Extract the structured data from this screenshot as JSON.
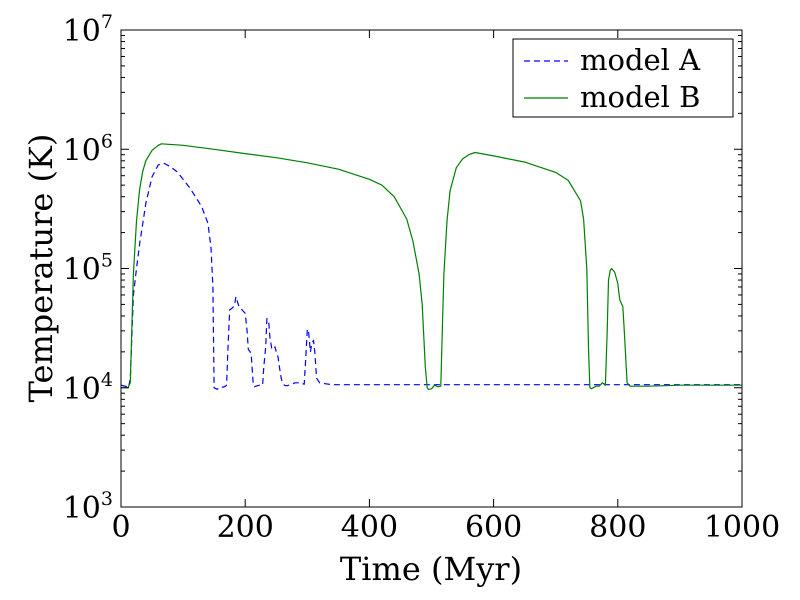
{
  "chart_data": {
    "type": "line",
    "title": "",
    "xlabel": "Time (Myr)",
    "ylabel": "Temperature (K)",
    "xlim": [
      0,
      1000
    ],
    "ylim": [
      1000,
      10000000
    ],
    "yscale": "log",
    "grid": false,
    "legend_position": "top-right",
    "x_ticks": [
      {
        "value": 0,
        "label": "0"
      },
      {
        "value": 200,
        "label": "200"
      },
      {
        "value": 400,
        "label": "400"
      },
      {
        "value": 600,
        "label": "600"
      },
      {
        "value": 800,
        "label": "800"
      },
      {
        "value": 1000,
        "label": "1000"
      }
    ],
    "y_ticks": [
      {
        "value": 1000,
        "base": "10",
        "exp": "3"
      },
      {
        "value": 10000,
        "base": "10",
        "exp": "4"
      },
      {
        "value": 100000,
        "base": "10",
        "exp": "5"
      },
      {
        "value": 1000000,
        "base": "10",
        "exp": "6"
      },
      {
        "value": 10000000,
        "base": "10",
        "exp": "7"
      }
    ],
    "series": [
      {
        "name": "model A",
        "color": "#0000ff",
        "style": "dashed",
        "x": [
          0,
          10,
          12,
          15,
          20,
          25,
          30,
          40,
          50,
          60,
          70,
          80,
          90,
          100,
          110,
          120,
          130,
          140,
          145,
          148,
          150,
          155,
          160,
          165,
          168,
          170,
          172,
          175,
          180,
          183,
          185,
          188,
          190,
          195,
          200,
          203,
          205,
          208,
          210,
          213,
          215,
          220,
          223,
          225,
          228,
          230,
          233,
          235,
          238,
          240,
          243,
          245,
          248,
          250,
          253,
          255,
          258,
          260,
          263,
          265,
          268,
          270,
          275,
          280,
          285,
          290,
          293,
          295,
          298,
          300,
          302,
          305,
          307,
          310,
          312,
          315,
          320,
          330,
          340,
          350,
          400,
          500,
          600,
          700,
          800,
          900,
          1000
        ],
        "y": [
          10500,
          10200,
          10000,
          12000,
          60000,
          100000,
          160000,
          350000,
          590000,
          740000,
          760000,
          710000,
          650000,
          560000,
          480000,
          400000,
          330000,
          240000,
          150000,
          70000,
          10000,
          9700,
          10200,
          10100,
          10300,
          10500,
          20000,
          45000,
          47000,
          50000,
          58000,
          52000,
          48000,
          45000,
          42000,
          30000,
          21000,
          20000,
          18000,
          10500,
          10200,
          10400,
          10500,
          10500,
          10500,
          15000,
          22000,
          38000,
          35000,
          26000,
          21000,
          21000,
          22000,
          20000,
          18000,
          15000,
          12000,
          11000,
          10500,
          10400,
          10400,
          10500,
          10700,
          11000,
          11000,
          11000,
          10800,
          10700,
          20000,
          31000,
          30000,
          20000,
          23000,
          25000,
          20000,
          12000,
          11000,
          10800,
          10600,
          10600,
          10600,
          10600,
          10600,
          10600,
          10600,
          10600,
          10600
        ]
      },
      {
        "name": "model B",
        "color": "#007f00",
        "style": "solid",
        "x": [
          0,
          10,
          12,
          15,
          18,
          20,
          25,
          30,
          35,
          40,
          50,
          60,
          65,
          100,
          150,
          200,
          250,
          300,
          350,
          400,
          420,
          440,
          460,
          470,
          480,
          485,
          490,
          493,
          495,
          497,
          500,
          505,
          510,
          515,
          518,
          520,
          525,
          530,
          540,
          550,
          560,
          570,
          580,
          600,
          650,
          700,
          720,
          740,
          745,
          750,
          753,
          755,
          758,
          760,
          765,
          770,
          775,
          778,
          780,
          783,
          785,
          788,
          790,
          795,
          800,
          803,
          805,
          808,
          810,
          815,
          820,
          850,
          900,
          1000
        ],
        "y": [
          10000,
          10000,
          10200,
          11000,
          40000,
          90000,
          250000,
          460000,
          650000,
          800000,
          980000,
          1080000,
          1110000,
          1080000,
          1000000,
          920000,
          850000,
          770000,
          680000,
          560000,
          500000,
          400000,
          260000,
          170000,
          90000,
          50000,
          15000,
          10000,
          9700,
          9700,
          9800,
          10500,
          10200,
          10300,
          40000,
          90000,
          250000,
          450000,
          700000,
          830000,
          900000,
          940000,
          920000,
          880000,
          780000,
          640000,
          550000,
          370000,
          260000,
          100000,
          20000,
          10000,
          9800,
          10000,
          10300,
          10300,
          11000,
          10800,
          10500,
          30000,
          80000,
          97000,
          100000,
          93000,
          75000,
          55000,
          52000,
          48000,
          33000,
          11000,
          10300,
          10300,
          10500,
          10500
        ]
      }
    ]
  }
}
